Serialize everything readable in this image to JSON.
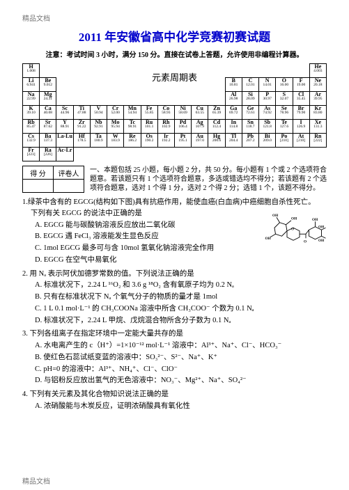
{
  "header_small": "精品文档",
  "title": "2011 年安徽省高中化学竞赛初赛试题",
  "notice": "注意：考试时间 3 小时，满分 150 分。直接在试卷上答题，允许使用非编程计算器。",
  "ptable_label": "元素周期表",
  "periodic": {
    "rows": [
      [
        {
          "sym": "H",
          "mass": "1.008"
        },
        null,
        null,
        null,
        null,
        null,
        null,
        null,
        null,
        null,
        null,
        null,
        null,
        null,
        null,
        null,
        null,
        {
          "sym": "He",
          "mass": "4.003"
        }
      ],
      [
        {
          "sym": "Li",
          "mass": "6.941"
        },
        {
          "sym": "Be",
          "mass": "9.012"
        },
        null,
        null,
        null,
        null,
        null,
        null,
        null,
        null,
        null,
        null,
        {
          "sym": "B",
          "mass": "10.81"
        },
        {
          "sym": "C",
          "mass": "12.01"
        },
        {
          "sym": "N",
          "mass": "14.01"
        },
        {
          "sym": "O",
          "mass": "16.00"
        },
        {
          "sym": "F",
          "mass": "19.00"
        },
        {
          "sym": "Ne",
          "mass": "20.18"
        }
      ],
      [
        {
          "sym": "Na",
          "mass": "22.99"
        },
        {
          "sym": "Mg",
          "mass": "24.31"
        },
        null,
        null,
        null,
        null,
        null,
        null,
        null,
        null,
        null,
        null,
        {
          "sym": "Al",
          "mass": "26.98"
        },
        {
          "sym": "Si",
          "mass": "28.09"
        },
        {
          "sym": "P",
          "mass": "30.97"
        },
        {
          "sym": "S",
          "mass": "32.07"
        },
        {
          "sym": "Cl",
          "mass": "35.45"
        },
        {
          "sym": "Ar",
          "mass": "39.95"
        }
      ],
      [
        {
          "sym": "K",
          "mass": "39.10"
        },
        {
          "sym": "Ca",
          "mass": "40.08"
        },
        {
          "sym": "Sc",
          "mass": "44.96"
        },
        {
          "sym": "Ti",
          "mass": "47.88"
        },
        {
          "sym": "V",
          "mass": "50.94"
        },
        {
          "sym": "Cr",
          "mass": "52.00"
        },
        {
          "sym": "Mn",
          "mass": "54.94"
        },
        {
          "sym": "Fe",
          "mass": "55.85"
        },
        {
          "sym": "Co",
          "mass": "58.93"
        },
        {
          "sym": "Ni",
          "mass": "58.69"
        },
        {
          "sym": "Cu",
          "mass": "63.55"
        },
        {
          "sym": "Zn",
          "mass": "65.39"
        },
        {
          "sym": "Ga",
          "mass": "69.72"
        },
        {
          "sym": "Ge",
          "mass": "72.61"
        },
        {
          "sym": "As",
          "mass": "74.92"
        },
        {
          "sym": "Se",
          "mass": "78.96"
        },
        {
          "sym": "Br",
          "mass": "79.90"
        },
        {
          "sym": "Kr",
          "mass": "83.80"
        }
      ],
      [
        {
          "sym": "Rb",
          "mass": "85.47"
        },
        {
          "sym": "Sr",
          "mass": "87.62"
        },
        {
          "sym": "Y",
          "mass": "88.91"
        },
        {
          "sym": "Zr",
          "mass": "91.22"
        },
        {
          "sym": "Nb",
          "mass": "92.91"
        },
        {
          "sym": "Mo",
          "mass": "95.94"
        },
        {
          "sym": "Tc",
          "mass": "98.91"
        },
        {
          "sym": "Ru",
          "mass": "101.1"
        },
        {
          "sym": "Rh",
          "mass": "102.9"
        },
        {
          "sym": "Pd",
          "mass": "106.4"
        },
        {
          "sym": "Ag",
          "mass": "107.9"
        },
        {
          "sym": "Cd",
          "mass": "112.4"
        },
        {
          "sym": "In",
          "mass": "114.8"
        },
        {
          "sym": "Sn",
          "mass": "118.7"
        },
        {
          "sym": "Sb",
          "mass": "121.8"
        },
        {
          "sym": "Te",
          "mass": "127.6"
        },
        {
          "sym": "I",
          "mass": "126.9"
        },
        {
          "sym": "Xe",
          "mass": "131.3"
        }
      ],
      [
        {
          "sym": "Cs",
          "mass": "132.9"
        },
        {
          "sym": "Ba",
          "mass": "137.3"
        },
        {
          "sym": "La-Lu",
          "mass": ""
        },
        {
          "sym": "Hf",
          "mass": "178.5"
        },
        {
          "sym": "Ta",
          "mass": "180.9"
        },
        {
          "sym": "W",
          "mass": "183.9"
        },
        {
          "sym": "Re",
          "mass": "186.2"
        },
        {
          "sym": "Os",
          "mass": "190.2"
        },
        {
          "sym": "Ir",
          "mass": "192.2"
        },
        {
          "sym": "Pt",
          "mass": "195.1"
        },
        {
          "sym": "Au",
          "mass": "197.0"
        },
        {
          "sym": "Hg",
          "mass": "200.6"
        },
        {
          "sym": "Tl",
          "mass": "204.4"
        },
        {
          "sym": "Pb",
          "mass": "207.2"
        },
        {
          "sym": "Bi",
          "mass": "209.0"
        },
        {
          "sym": "Po",
          "mass": "[210]"
        },
        {
          "sym": "At",
          "mass": "[210]"
        },
        {
          "sym": "Rn",
          "mass": "[222]"
        }
      ],
      [
        {
          "sym": "Fr",
          "mass": "[223]"
        },
        {
          "sym": "Ra",
          "mass": "[226]"
        },
        {
          "sym": "Ac-Lr",
          "mass": ""
        },
        null,
        null,
        null,
        null,
        null,
        null,
        null,
        null,
        null,
        null,
        null,
        null,
        null,
        null,
        null
      ]
    ]
  },
  "score": {
    "c1": "得 分",
    "c2": "评卷人"
  },
  "section_instr": "一、本题包括 25 小题，每小题 2 分，共 50 分。每小题有 1 个或 2 个选项符合题意。若该题只有 1 个选项符合题意，多选或错选均不得分；若该题有 2 个选项符合题意，选对 1 个得 1 分，选对 2 个得 2 分；选错 1 个，该题不得分。",
  "q1": {
    "stem1": "1.绿茶中含有的 EGCG(结构如下图)具有抗癌作用，能使血癌(白血病)中癌细胞自杀性死亡。",
    "stem2": "下列有关 EGCG 的说法中正确的是",
    "A": "A. EGCG 能与碳酸钠溶液反应放出二氧化碳",
    "B": "B. EGCG 遇 FeCl₃ 溶液能发生显色反应",
    "C": "C. 1mol EGCG 最多可与含 10mol 氢氧化钠溶液完全作用",
    "D": "D. EGCG 在空气中易氧化",
    "oh": "OH"
  },
  "q2": {
    "stem": "2.  用 Nₐ 表示阿伏加德罗常数的值。下列说法正确的是",
    "A": "A. 标准状况下，2.24 L ¹⁶O₂ 和 3.6 g ¹⁸O₂ 含有氧原子均为 0.2 Nₐ",
    "B": "B. 只有在标准状况下 Nₐ 个氧气分子的物质的量才是 1mol",
    "C": "C. 1 L 0.1 mol·L⁻¹ 的 CH₃COONa 溶液中所含 CH₃COO⁻ 个数为 0.1 Nₐ",
    "D": "D. 标准状况下，2.24 L 甲烷、戊烷混合物所含分子数为 0.1 Nₐ"
  },
  "q3": {
    "stem": "3.  下列各组离子在指定环境中一定能大量共存的是",
    "A": "A. 水电离产生的 c（H⁺）=1×10⁻¹² mol·L⁻¹ 溶液中：Al³⁺、Na⁺、Cl⁻、HCO₃⁻",
    "B": "B. 使红色石蕊试纸变蓝的溶液中：SO₃²⁻、S²⁻、Na⁺、K⁺",
    "C": "C. pH=0 的溶液中：Al³⁺、NH₄⁺、Cl⁻、ClO⁻",
    "D": "D. 与铝粉反应放出氢气的无色溶液中：NO₃⁻、Mg²⁺、Na⁺、SO₄²⁻"
  },
  "q4": {
    "stem": "4.  下列有关元素及其化合物知识说法正确的是",
    "A": "A. 浓硝酸能与木炭反应，证明浓硝酸具有氧化性"
  },
  "footer_small": "精品文档"
}
